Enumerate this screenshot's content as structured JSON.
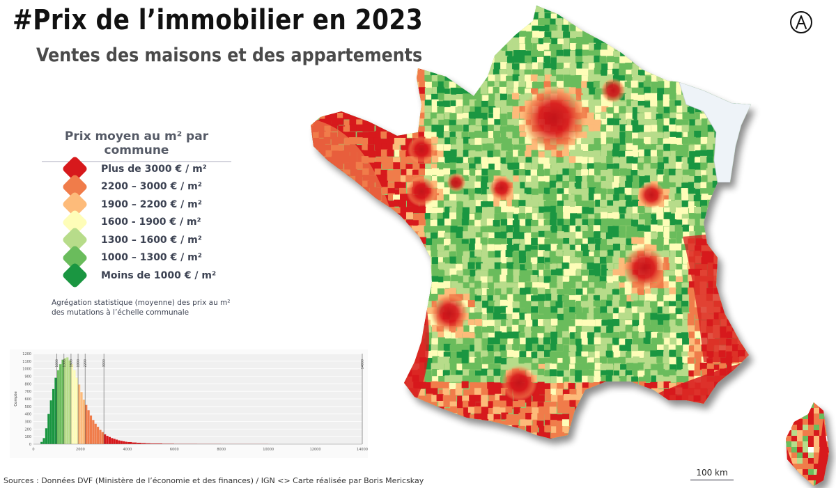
{
  "header": {
    "title": "#Prix de l’immobilier en 2023",
    "subtitle": "Ventes des maisons et des appartements"
  },
  "legend": {
    "title": "Prix moyen au m² par commune",
    "items": [
      {
        "label": "Plus de 3000 € / m²",
        "color": "#d7191c"
      },
      {
        "label": "2200 – 3000 € / m²",
        "color": "#f07c4a"
      },
      {
        "label": "1900 – 2200 € / m²",
        "color": "#fdbb7a"
      },
      {
        "label": "1600 - 1900 € / m²",
        "color": "#fefdb8"
      },
      {
        "label": "1300 – 1600 € / m²",
        "color": "#b7dc8a"
      },
      {
        "label": "1000 – 1300 € / m²",
        "color": "#6abc5c"
      },
      {
        "label": "Moins de 1000 € / m²",
        "color": "#1a9641"
      }
    ],
    "note": "Agrégation statistique (moyenne)  des prix au m²\ndes mutations à l’échelle communale"
  },
  "chart_data": {
    "type": "bar",
    "title": "",
    "xlabel": "",
    "ylabel": "Compte",
    "xlim": [
      0,
      14000
    ],
    "ylim": [
      0,
      1200
    ],
    "x_ticks": [
      0,
      2000,
      4000,
      6000,
      8000,
      10000,
      12000,
      14000
    ],
    "y_ticks": [
      0,
      100,
      200,
      300,
      400,
      500,
      600,
      700,
      800,
      900,
      1000,
      1100,
      1200
    ],
    "thresholds": [
      1000,
      1300,
      1600,
      1900,
      2200,
      3000,
      14000
    ],
    "bin_width": 100,
    "bins_start": [
      300,
      400,
      500,
      600,
      700,
      800,
      900,
      1000,
      1100,
      1200,
      1300,
      1400,
      1500,
      1600,
      1700,
      1800,
      1900,
      2000,
      2100,
      2200,
      2300,
      2400,
      2500,
      2600,
      2700,
      2800,
      2900,
      3000,
      3100,
      3200,
      3300,
      3400,
      3500,
      3600,
      3700,
      3800,
      3900,
      4000,
      4200,
      4400,
      4600,
      4800,
      5000,
      5500,
      6000,
      7000,
      8000,
      10000
    ],
    "counts": [
      30,
      80,
      210,
      400,
      580,
      730,
      880,
      980,
      1060,
      1120,
      1140,
      1150,
      1110,
      1060,
      980,
      880,
      790,
      690,
      590,
      520,
      450,
      380,
      320,
      270,
      230,
      190,
      160,
      130,
      110,
      95,
      80,
      70,
      60,
      50,
      44,
      38,
      32,
      28,
      22,
      18,
      14,
      11,
      9,
      6,
      4,
      3,
      2,
      1
    ]
  },
  "sources": "Sources : Données DVF (Ministère de l’économie et des finances) / IGN  <>  Carte réalisée par Boris Mericskay",
  "scalebar": {
    "label": "100 km"
  },
  "north_arrow": {
    "icon": "north-arrow-icon"
  },
  "map": {
    "type": "choropleth",
    "region": "France (communes)",
    "alsace_moselle": "no data (pale blue)"
  }
}
